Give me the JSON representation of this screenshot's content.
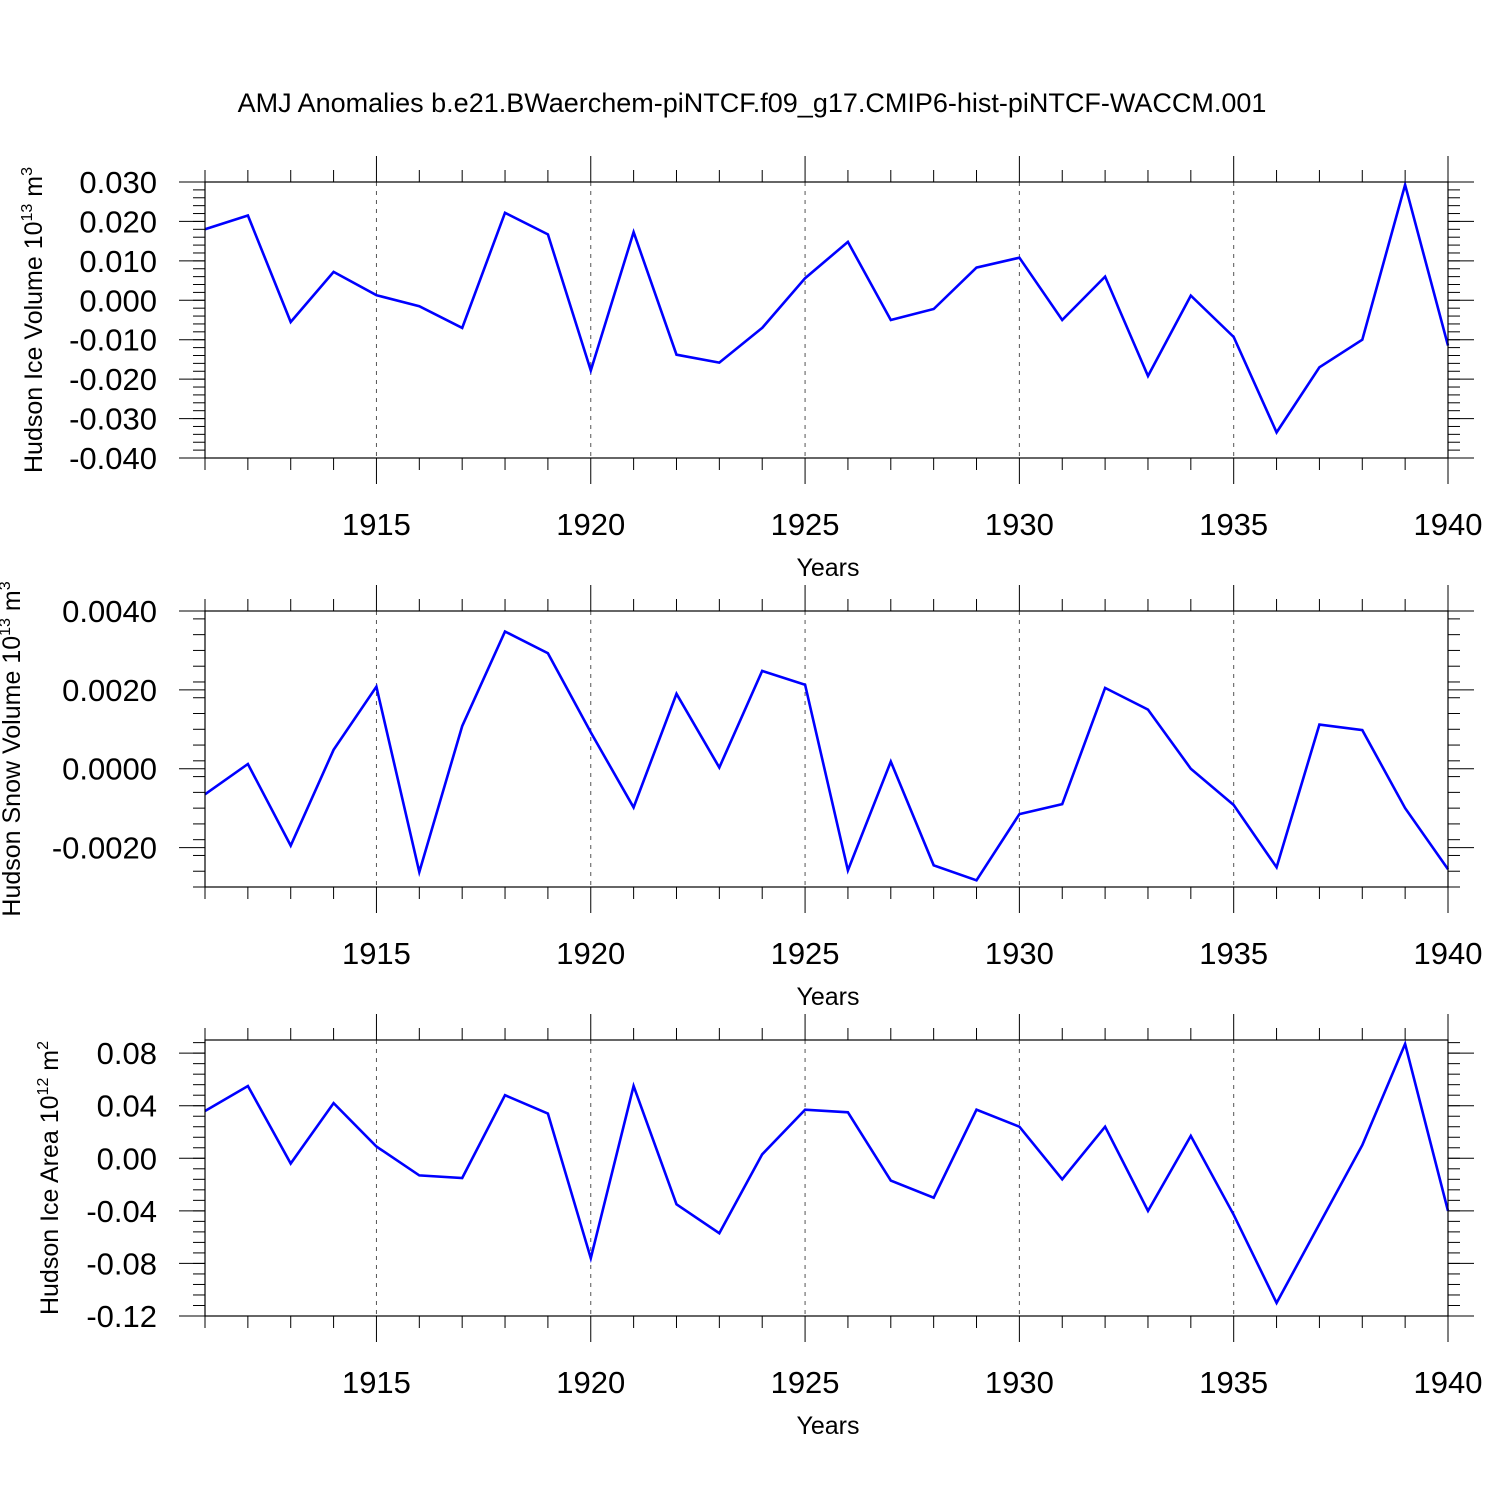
{
  "title": "AMJ Anomalies b.e21.BWaerchem-piNTCF.f09_g17.CMIP6-hist-piNTCF-WACCM.001",
  "line_color": "#0000ff",
  "chart_data": [
    {
      "type": "line",
      "ylabel_main": "Hudson Ice Volume 10",
      "ylabel_exp": "13",
      "ylabel_unit": " m",
      "ylabel_unit_exp": "3",
      "xlabel": "Years",
      "xlim": [
        1911,
        1940
      ],
      "ylim": [
        -0.04,
        0.03
      ],
      "yticks": [
        -0.04,
        -0.03,
        -0.02,
        -0.01,
        0.0,
        0.01,
        0.02,
        0.03
      ],
      "ytick_labels": [
        "-0.040",
        "-0.030",
        "-0.020",
        "-0.010",
        "0.000",
        "0.010",
        "0.020",
        "0.030"
      ],
      "xticks": [
        1915,
        1920,
        1925,
        1930,
        1935,
        1940
      ],
      "xtick_labels": [
        "1915",
        "1920",
        "1925",
        "1930",
        "1935",
        "1940"
      ],
      "series": [
        {
          "name": "Hudson Ice Volume",
          "x": [
            1911,
            1912,
            1913,
            1914,
            1915,
            1916,
            1917,
            1918,
            1919,
            1920,
            1921,
            1922,
            1923,
            1924,
            1925,
            1926,
            1927,
            1928,
            1929,
            1930,
            1931,
            1932,
            1933,
            1934,
            1935,
            1936,
            1937,
            1938,
            1939,
            1940
          ],
          "values": [
            0.018,
            0.0215,
            -0.0055,
            0.0072,
            0.0013,
            -0.0015,
            -0.007,
            0.0222,
            0.0167,
            -0.0178,
            0.0173,
            -0.0138,
            -0.0158,
            -0.007,
            0.0056,
            0.0148,
            -0.005,
            -0.0022,
            0.0083,
            0.0108,
            -0.005,
            0.006,
            -0.0192,
            0.0012,
            -0.0093,
            -0.0335,
            -0.017,
            -0.01,
            0.0293,
            -0.0115
          ]
        }
      ]
    },
    {
      "type": "line",
      "ylabel_main": "Hudson Snow Volume 10",
      "ylabel_exp": "13",
      "ylabel_unit": " m",
      "ylabel_unit_exp": "3",
      "xlabel": "Years",
      "xlim": [
        1911,
        1940
      ],
      "ylim": [
        -0.003,
        0.004
      ],
      "yticks": [
        -0.002,
        0.0,
        0.002,
        0.004
      ],
      "ytick_labels": [
        "-0.0020",
        "0.0000",
        "0.0020",
        "0.0040"
      ],
      "xticks": [
        1915,
        1920,
        1925,
        1930,
        1935,
        1940
      ],
      "xtick_labels": [
        "1915",
        "1920",
        "1925",
        "1930",
        "1935",
        "1940"
      ],
      "series": [
        {
          "name": "Hudson Snow Volume",
          "x": [
            1911,
            1912,
            1913,
            1914,
            1915,
            1916,
            1917,
            1918,
            1919,
            1920,
            1921,
            1922,
            1923,
            1924,
            1925,
            1926,
            1927,
            1928,
            1929,
            1930,
            1931,
            1932,
            1933,
            1934,
            1935,
            1936,
            1937,
            1938,
            1939,
            1940
          ],
          "values": [
            -0.00065,
            0.00012,
            -0.00195,
            0.00048,
            0.00208,
            -0.00262,
            0.00108,
            0.00348,
            0.00293,
            0.00092,
            -0.00098,
            0.0019,
            3e-05,
            0.00248,
            0.00213,
            -0.00258,
            0.00018,
            -0.00245,
            -0.00283,
            -0.00115,
            -0.0009,
            0.00205,
            0.0015,
            0.0,
            -0.00092,
            -0.0025,
            0.00112,
            0.00098,
            -0.001,
            -0.00255
          ]
        }
      ]
    },
    {
      "type": "line",
      "ylabel_main": "Hudson Ice Area 10",
      "ylabel_exp": "12",
      "ylabel_unit": " m",
      "ylabel_unit_exp": "2",
      "xlabel": "Years",
      "xlim": [
        1911,
        1940
      ],
      "ylim": [
        -0.12,
        0.09
      ],
      "yticks": [
        -0.12,
        -0.08,
        -0.04,
        0.0,
        0.04,
        0.08
      ],
      "ytick_labels": [
        "-0.12",
        "-0.08",
        "-0.04",
        "0.00",
        "0.04",
        "0.08"
      ],
      "xticks": [
        1915,
        1920,
        1925,
        1930,
        1935,
        1940
      ],
      "xtick_labels": [
        "1915",
        "1920",
        "1925",
        "1930",
        "1935",
        "1940"
      ],
      "series": [
        {
          "name": "Hudson Ice Area",
          "x": [
            1911,
            1912,
            1913,
            1914,
            1915,
            1916,
            1917,
            1918,
            1919,
            1920,
            1921,
            1922,
            1923,
            1924,
            1925,
            1926,
            1927,
            1928,
            1929,
            1930,
            1931,
            1932,
            1933,
            1934,
            1935,
            1936,
            1937,
            1938,
            1939,
            1940
          ],
          "values": [
            0.036,
            0.055,
            -0.004,
            0.042,
            0.009,
            -0.013,
            -0.015,
            0.048,
            0.034,
            -0.076,
            0.055,
            -0.035,
            -0.057,
            0.003,
            0.037,
            0.035,
            -0.017,
            -0.03,
            0.037,
            0.024,
            -0.016,
            0.024,
            -0.04,
            0.017,
            -0.043,
            -0.11,
            -0.05,
            0.01,
            0.087,
            -0.04
          ]
        }
      ]
    }
  ]
}
